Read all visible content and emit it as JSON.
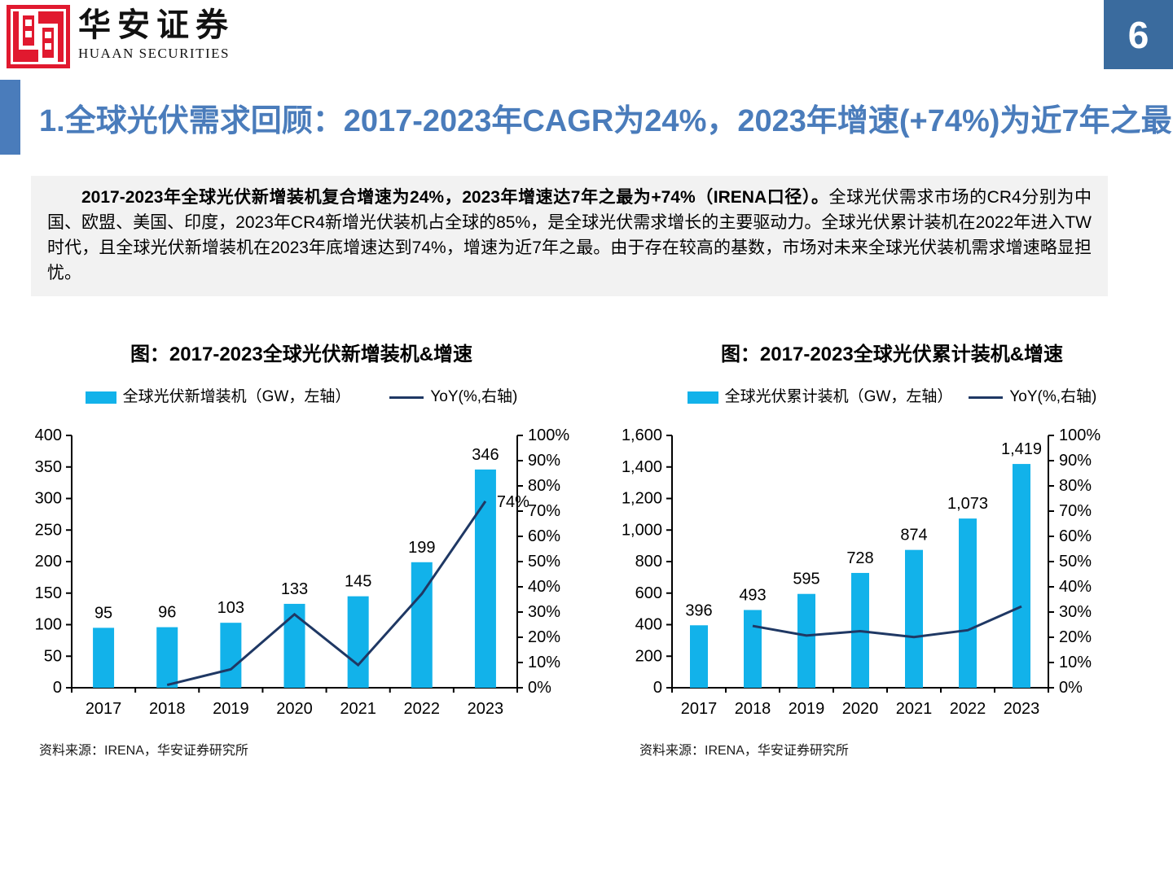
{
  "page": {
    "badge": "6",
    "logo": {
      "cn": "华安证券",
      "en": "HUAAN SECURITIES"
    },
    "title": "1.全球光伏需求回顾：2017-2023年CAGR为24%，2023年增速(+74%)为近7年之最",
    "summary": {
      "bold": "2017-2023年全球光伏新增装机复合增速为24%，2023年增速达7年之最为+74%（IRENA口径）。",
      "rest": "全球光伏需求市场的CR4分别为中国、欧盟、美国、印度，2023年CR4新增光伏装机占全球的85%，是全球光伏需求增长的主要驱动力。全球光伏累计装机在2022年进入TW时代，且全球光伏新增装机在2023年底增速达到74%，增速为近7年之最。由于存在较高的基数，市场对未来全球光伏装机需求增速略显担忧。"
    },
    "colors": {
      "accent_blue": "#4A7CBB",
      "badge_blue": "#3A6B9E",
      "bar_cyan": "#12B2EA",
      "line_navy": "#1F3864",
      "logo_red": "#E1192F",
      "panel_gray": "#F2F2F2"
    }
  },
  "chart_data": [
    {
      "type": "bar+line",
      "title": "图：2017-2023全球光伏新增装机&增速",
      "categories": [
        "2017",
        "2018",
        "2019",
        "2020",
        "2021",
        "2022",
        "2023"
      ],
      "bars": {
        "name": "全球光伏新增装机（GW，左轴）",
        "values": [
          95,
          96,
          103,
          133,
          145,
          199,
          346
        ],
        "labels": [
          "95",
          "96",
          "103",
          "133",
          "145",
          "199",
          "346"
        ]
      },
      "line": {
        "name": "YoY(%,右轴)",
        "values": [
          null,
          1.1,
          7.3,
          29.1,
          9.0,
          37.2,
          73.9
        ],
        "end_label": "74%"
      },
      "left_axis": {
        "min": 0,
        "max": 400,
        "tick_labels": [
          "400",
          "350",
          "300",
          "250",
          "200",
          "150",
          "100",
          "50",
          "0"
        ]
      },
      "right_axis": {
        "min": 0,
        "max": 100,
        "tick_labels": [
          "100%",
          "90%",
          "80%",
          "70%",
          "60%",
          "50%",
          "40%",
          "30%",
          "20%",
          "10%",
          "0%"
        ]
      },
      "source": "资料来源：IRENA，华安证券研究所"
    },
    {
      "type": "bar+line",
      "title": "图：2017-2023全球光伏累计装机&增速",
      "categories": [
        "2017",
        "2018",
        "2019",
        "2020",
        "2021",
        "2022",
        "2023"
      ],
      "bars": {
        "name": "全球光伏累计装机（GW，左轴）",
        "values": [
          396,
          493,
          595,
          728,
          874,
          1073,
          1419
        ],
        "labels": [
          "396",
          "493",
          "595",
          "728",
          "874",
          "1,073",
          "1,419"
        ]
      },
      "line": {
        "name": "YoY(%,右轴)",
        "values": [
          null,
          24.5,
          20.7,
          22.4,
          20.1,
          22.8,
          32.2
        ],
        "end_label": null
      },
      "left_axis": {
        "min": 0,
        "max": 1600,
        "tick_labels": [
          "1,600",
          "1,400",
          "1,200",
          "1,000",
          "800",
          "600",
          "400",
          "200",
          "0"
        ]
      },
      "right_axis": {
        "min": 0,
        "max": 100,
        "tick_labels": [
          "100%",
          "90%",
          "80%",
          "70%",
          "60%",
          "50%",
          "40%",
          "30%",
          "20%",
          "10%",
          "0%"
        ]
      },
      "source": "资料来源：IRENA，华安证券研究所"
    }
  ]
}
